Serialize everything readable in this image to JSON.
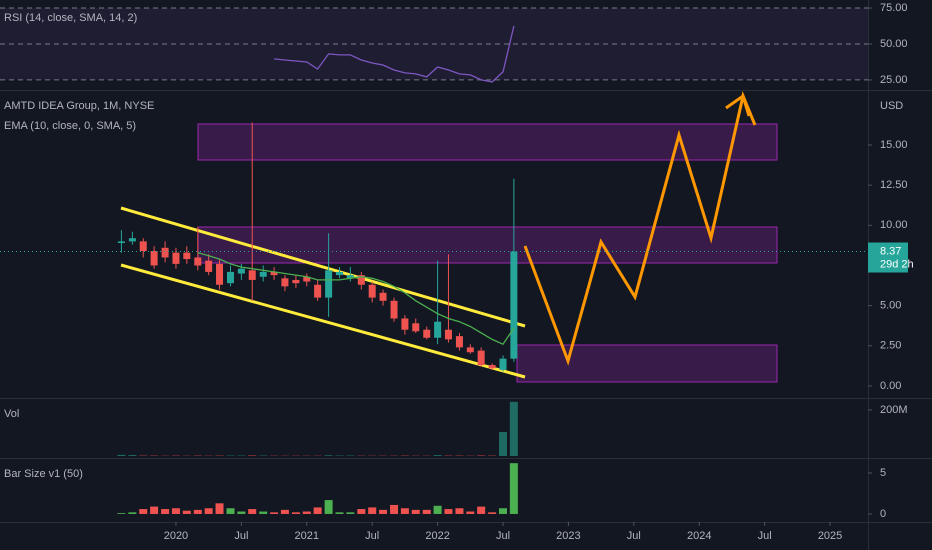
{
  "chart_data": [
    {
      "type": "line",
      "title": "RSI (14, close, SMA, 14, 2)",
      "x": [
        2020.75,
        2020.833,
        2020.917,
        2021,
        2021.083,
        2021.167,
        2021.25,
        2021.333,
        2021.417,
        2021.5,
        2021.583,
        2021.667,
        2021.75,
        2021.833,
        2021.917,
        2022,
        2022.083,
        2022.167,
        2022.25,
        2022.333,
        2022.417,
        2022.5,
        2022.583
      ],
      "series": [
        {
          "color": "#7e57c2",
          "values": [
            39.6,
            38.9,
            38.2,
            37.5,
            32.6,
            43.1,
            42.4,
            42.4,
            38.9,
            36.8,
            35.4,
            31.9,
            29.9,
            29.2,
            27.1,
            34.0,
            31.9,
            29.2,
            28.5,
            25.0,
            23.6,
            30.6,
            62.5
          ]
        }
      ],
      "xlim": [
        2018.655,
        2025.29
      ],
      "ylim": [
        18,
        80.6
      ],
      "yticks": [
        {
          "value": 75,
          "label": "75.00"
        },
        {
          "value": 50,
          "label": "50.00"
        },
        {
          "value": 25,
          "label": "25.00"
        }
      ]
    },
    {
      "type": "candlestick",
      "title": "AMTD IDEA Group, 1M, NYSE",
      "subtitle": "EMA (10, close, 0, SMA, 5)",
      "unit": "USD",
      "countdown": "29d 2h",
      "x": [
        2019.583,
        2019.667,
        2019.75,
        2019.833,
        2019.917,
        2020,
        2020.083,
        2020.167,
        2020.25,
        2020.333,
        2020.417,
        2020.5,
        2020.583,
        2020.667,
        2020.75,
        2020.833,
        2020.917,
        2021,
        2021.083,
        2021.167,
        2021.25,
        2021.333,
        2021.417,
        2021.5,
        2021.583,
        2021.667,
        2021.75,
        2021.833,
        2021.917,
        2022,
        2022.083,
        2022.167,
        2022.25,
        2022.333,
        2022.417,
        2022.5,
        2022.583
      ],
      "open": [
        8.9,
        9.0,
        9.0,
        8.4,
        8.6,
        8.3,
        8.3,
        8.0,
        7.8,
        7.6,
        6.4,
        7.0,
        7.2,
        6.8,
        7.1,
        6.7,
        6.6,
        6.8,
        6.3,
        5.5,
        6.9,
        6.7,
        6.9,
        6.3,
        5.8,
        5.3,
        4.2,
        3.9,
        3.5,
        3.0,
        3.5,
        3.1,
        2.4,
        2.2,
        1.3,
        1.0,
        1.7
      ],
      "high": [
        9.7,
        9.6,
        9.2,
        8.7,
        9.0,
        8.6,
        8.7,
        9.9,
        8.2,
        7.9,
        7.5,
        7.6,
        16.4,
        7.5,
        7.4,
        6.9,
        6.9,
        7.0,
        6.6,
        9.5,
        7.4,
        7.4,
        7.1,
        6.5,
        6.0,
        5.5,
        4.4,
        4.2,
        3.7,
        7.8,
        8.2,
        3.3,
        2.6,
        2.4,
        1.4,
        1.9,
        12.9
      ],
      "low": [
        8.3,
        8.8,
        8.0,
        7.3,
        7.7,
        7.3,
        7.6,
        7.2,
        6.9,
        6.0,
        6.2,
        6.6,
        5.3,
        6.5,
        6.6,
        5.9,
        6.1,
        6.2,
        5.3,
        4.3,
        6.7,
        6.5,
        6.0,
        5.2,
        5.0,
        4.0,
        3.2,
        3.3,
        2.9,
        2.6,
        2.7,
        2.2,
        2.0,
        1.2,
        1.0,
        0.9,
        1.5
      ],
      "close": [
        9.0,
        9.2,
        8.4,
        7.5,
        8.0,
        7.6,
        7.9,
        7.5,
        7.1,
        6.3,
        7.1,
        7.3,
        6.6,
        7.1,
        6.9,
        6.2,
        6.4,
        6.5,
        5.5,
        7.2,
        7.1,
        6.9,
        6.3,
        5.5,
        5.3,
        4.2,
        3.5,
        3.4,
        3.0,
        4.0,
        2.9,
        2.4,
        2.1,
        1.3,
        1.1,
        1.7,
        8.37
      ],
      "ema": [
        null,
        null,
        null,
        null,
        null,
        null,
        null,
        8.3,
        8.1,
        7.9,
        7.6,
        7.4,
        7.3,
        7.2,
        7.1,
        7.0,
        6.9,
        6.8,
        6.6,
        6.6,
        6.6,
        6.7,
        6.8,
        6.7,
        6.5,
        6.2,
        5.8,
        5.3,
        4.9,
        4.5,
        4.2,
        4.0,
        3.7,
        3.3,
        2.9,
        2.6,
        3.6
      ],
      "ema_color": "#4caf50",
      "up_color": "#26a69a",
      "down_color": "#ef5350",
      "xlim": [
        2018.655,
        2025.29
      ],
      "ylim": [
        -0.75,
        18.3
      ],
      "yticks": [
        {
          "value": 0,
          "label": "0.00"
        },
        {
          "value": 2.5,
          "label": "2.50"
        },
        {
          "value": 5,
          "label": "5.00"
        },
        {
          "value": 7.5,
          "label": "7.50"
        },
        {
          "value": 10,
          "label": "10.00"
        },
        {
          "value": 12.5,
          "label": "12.50"
        },
        {
          "value": 15,
          "label": "15.00"
        }
      ]
    },
    {
      "type": "bar",
      "title": "Vol",
      "x": [
        2019.583,
        2019.667,
        2019.75,
        2019.833,
        2019.917,
        2020,
        2020.083,
        2020.167,
        2020.25,
        2020.333,
        2020.417,
        2020.5,
        2020.583,
        2020.667,
        2020.75,
        2020.833,
        2020.917,
        2021,
        2021.083,
        2021.167,
        2021.25,
        2021.333,
        2021.417,
        2021.5,
        2021.583,
        2021.667,
        2021.75,
        2021.833,
        2021.917,
        2022,
        2022.083,
        2022.167,
        2022.25,
        2022.333,
        2022.417,
        2022.5,
        2022.583
      ],
      "values": [
        5000000,
        4000000,
        3000000,
        3000000,
        2000000,
        3000000,
        2000000,
        3000000,
        2000000,
        3000000,
        2000000,
        2000000,
        4000000,
        2000000,
        2000000,
        2000000,
        2000000,
        2000000,
        2000000,
        3000000,
        2000000,
        2000000,
        2000000,
        2000000,
        2000000,
        2000000,
        3000000,
        2000000,
        2000000,
        4000000,
        3000000,
        3000000,
        2000000,
        4000000,
        3000000,
        104000000,
        235000000
      ],
      "up_color": "#1f6b63",
      "down_color": "#7a2e33",
      "xlim": [
        2018.655,
        2025.29
      ],
      "ylim": [
        -8700000,
        243000000
      ],
      "yticks": [
        {
          "value": 200000000,
          "label": "200M"
        }
      ]
    },
    {
      "type": "bar",
      "title": "Bar Size v1 (50)",
      "x": [
        2019.583,
        2019.667,
        2019.75,
        2019.833,
        2019.917,
        2020,
        2020.083,
        2020.167,
        2020.25,
        2020.333,
        2020.417,
        2020.5,
        2020.583,
        2020.667,
        2020.75,
        2020.833,
        2020.917,
        2021,
        2021.083,
        2021.167,
        2021.25,
        2021.333,
        2021.417,
        2021.5,
        2021.583,
        2021.667,
        2021.75,
        2021.833,
        2021.917,
        2022,
        2022.083,
        2022.167,
        2022.25,
        2022.333,
        2022.417,
        2022.5,
        2022.583
      ],
      "values": [
        0.1,
        0.2,
        0.6,
        0.9,
        0.6,
        0.7,
        0.4,
        0.5,
        0.7,
        1.3,
        0.7,
        0.3,
        0.6,
        0.3,
        0.2,
        0.5,
        0.2,
        0.3,
        0.8,
        1.7,
        0.2,
        0.2,
        0.6,
        0.8,
        0.5,
        1.1,
        0.7,
        0.5,
        0.5,
        1.0,
        0.6,
        0.7,
        0.3,
        0.9,
        0.2,
        0.7,
        6.2
      ],
      "up_color": "#4caf50",
      "down_color": "#ef5350",
      "xlim": [
        2018.655,
        2025.29
      ],
      "ylim": [
        -0.98,
        6.59
      ],
      "yticks": [
        0,
        5
      ],
      "xticks": [
        {
          "value": 2020,
          "label": "2020"
        },
        {
          "value": 2020.5,
          "label": "Jul"
        },
        {
          "value": 2021,
          "label": "2021"
        },
        {
          "value": 2021.5,
          "label": "Jul"
        },
        {
          "value": 2022,
          "label": "2022"
        },
        {
          "value": 2022.5,
          "label": "Jul"
        },
        {
          "value": 2023,
          "label": "2023"
        },
        {
          "value": 2023.5,
          "label": "Jul"
        },
        {
          "value": 2024,
          "label": "2024"
        },
        {
          "value": 2024.5,
          "label": "Jul"
        },
        {
          "value": 2025,
          "label": "2025"
        }
      ]
    }
  ]
}
